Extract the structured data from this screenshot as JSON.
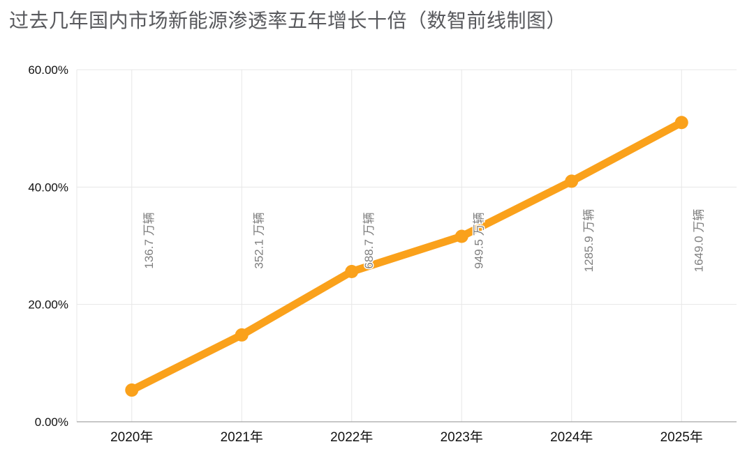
{
  "title": "过去几年国内市场新能源渗透率五年增长十倍（数智前线制图）",
  "chart_data": {
    "type": "line",
    "categories": [
      "2020年",
      "2021年",
      "2022年",
      "2023年",
      "2024年",
      "2025年"
    ],
    "series": [
      {
        "name": "新能源渗透率",
        "values": [
          5.4,
          14.8,
          25.6,
          31.6,
          41.0,
          51.0
        ]
      }
    ],
    "point_labels": [
      "136.7 万辆",
      "352.1 万辆",
      "688.7 万辆",
      "949.5 万辆",
      "1285.9 万辆",
      "1649.0 万辆"
    ],
    "xlabel": "",
    "ylabel": "",
    "ylim": [
      0,
      60
    ],
    "y_ticks": [
      0,
      20,
      40,
      60
    ],
    "y_tick_labels": [
      "0.00%",
      "20.00%",
      "40.00%",
      "60.00%"
    ],
    "grid": true,
    "legend_position": "none",
    "line_color": "#FAA11B",
    "grid_color": "#e7e7e7",
    "axis_color": "#8f8f8f",
    "tick_label_color": "#111111",
    "point_label_color": "#7f7f7f",
    "background_color": "#ffffff"
  }
}
